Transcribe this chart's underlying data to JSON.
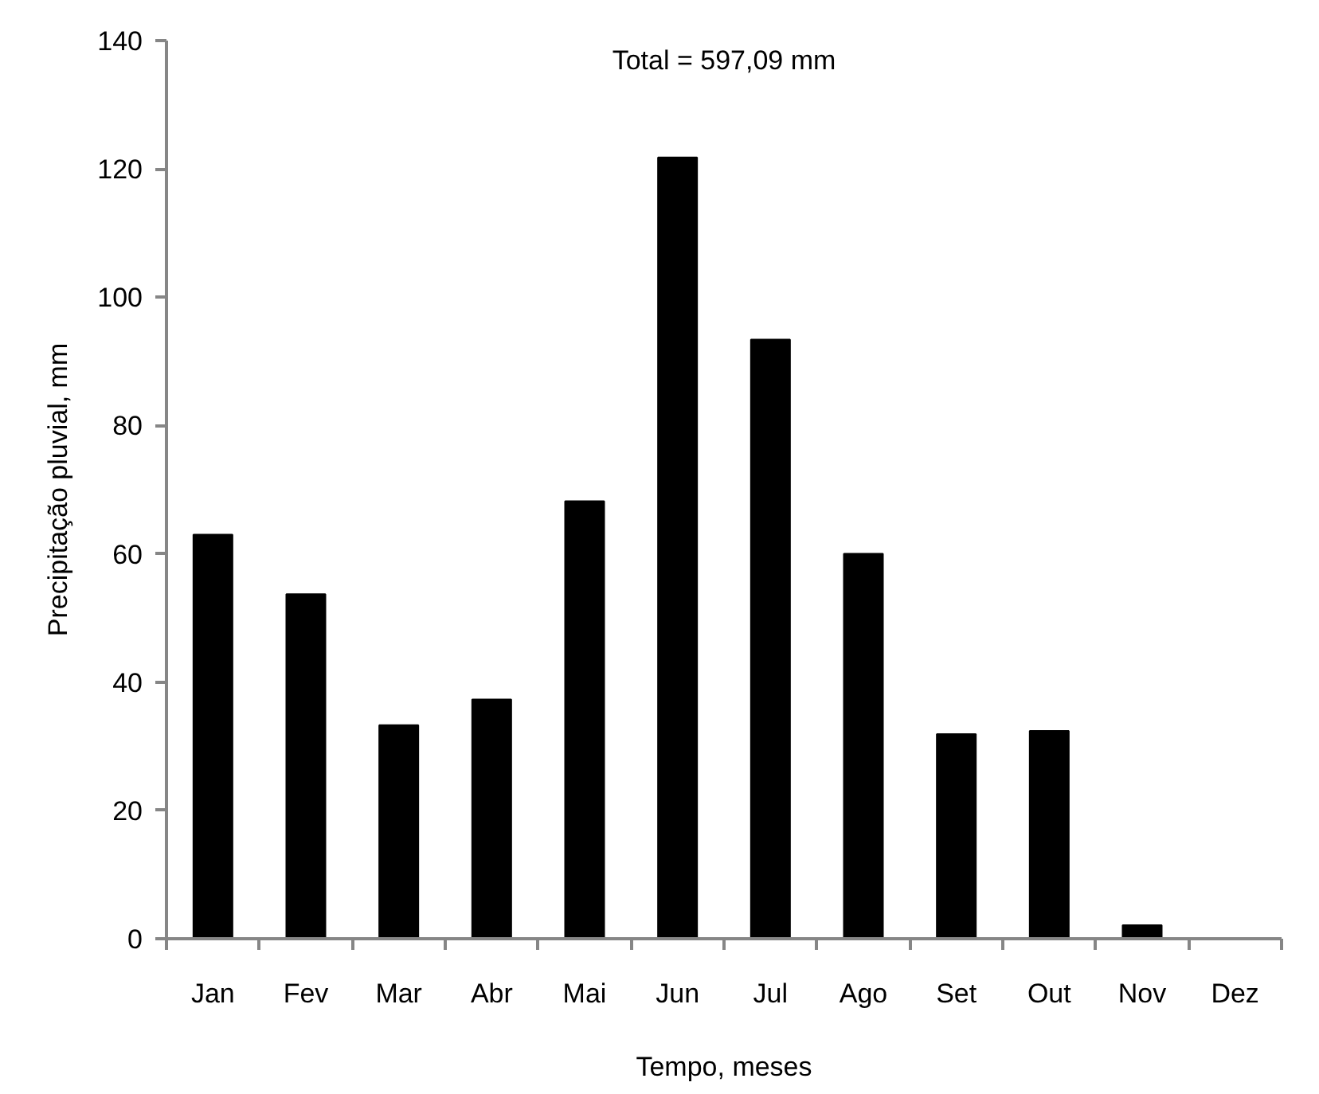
{
  "chart_data": {
    "type": "bar",
    "categories": [
      "Jan",
      "Fev",
      "Mar",
      "Abr",
      "Mai",
      "Jun",
      "Jul",
      "Ago",
      "Set",
      "Out",
      "Nov",
      "Dez"
    ],
    "values": [
      63.0,
      53.7,
      33.3,
      37.3,
      68.2,
      121.8,
      93.4,
      60.0,
      31.9,
      32.4,
      2.1,
      0
    ],
    "color": "#000000",
    "ylim": [
      0,
      140
    ],
    "yticks": [
      0,
      20,
      40,
      60,
      80,
      100,
      120,
      140
    ],
    "xlabel": "Tempo, meses",
    "ylabel": "Precipitação pluvial, mm",
    "annotations": [
      "Total = 597,09 mm"
    ]
  }
}
